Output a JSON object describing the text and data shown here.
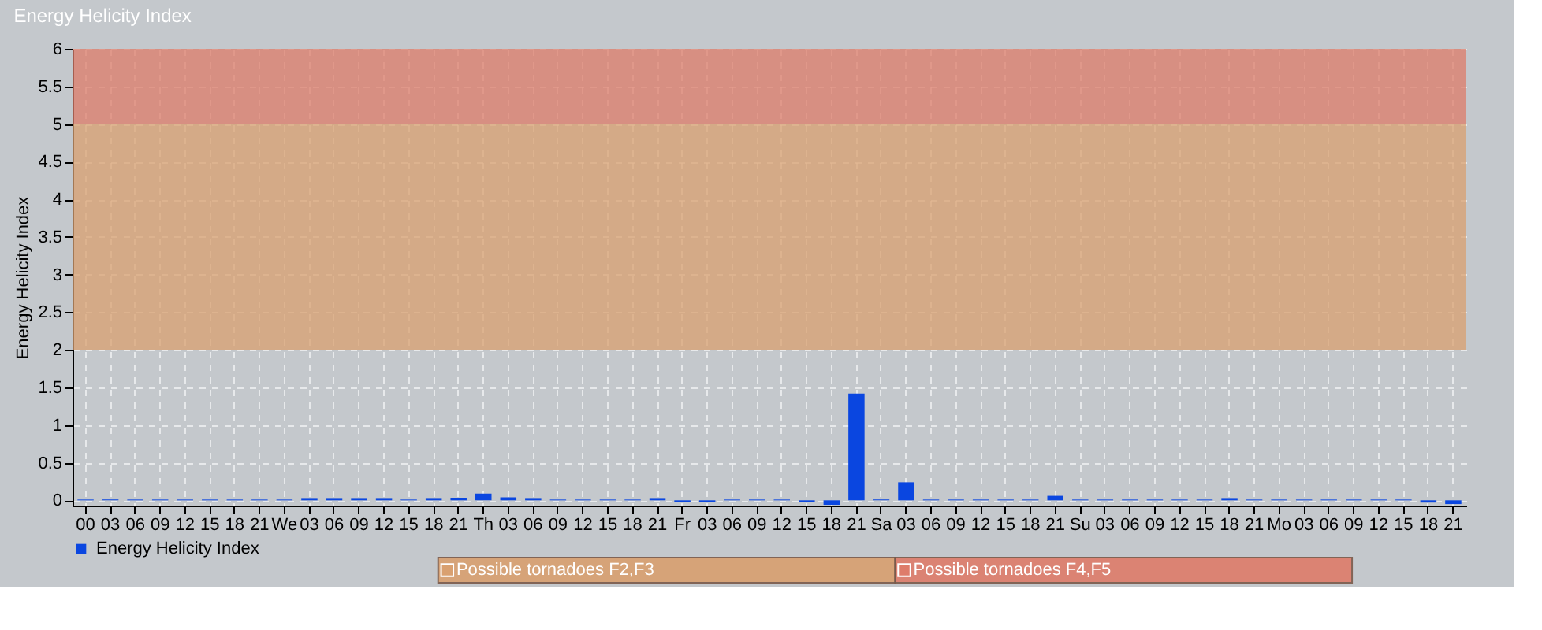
{
  "chart_data": {
    "type": "bar",
    "title": "Energy Helicity Index",
    "ylabel": "Energy Helicity Index",
    "categories": [
      "00",
      "03",
      "06",
      "09",
      "12",
      "15",
      "18",
      "21",
      "We",
      "03",
      "06",
      "09",
      "12",
      "15",
      "18",
      "21",
      "Th",
      "03",
      "06",
      "09",
      "12",
      "15",
      "18",
      "21",
      "Fr",
      "03",
      "06",
      "09",
      "12",
      "15",
      "18",
      "21",
      "Sa",
      "03",
      "06",
      "09",
      "12",
      "15",
      "18",
      "21",
      "Su",
      "03",
      "06",
      "09",
      "12",
      "15",
      "18",
      "21",
      "Mo",
      "03",
      "06",
      "09",
      "12",
      "15",
      "18",
      "21"
    ],
    "series": [
      {
        "name": "Energy Helicity Index",
        "color": "#0a46e0",
        "values": [
          0.01,
          0.01,
          0.01,
          0.01,
          0.01,
          0.01,
          0.01,
          0.01,
          0.01,
          0.02,
          0.02,
          0.02,
          0.02,
          0.01,
          0.02,
          0.03,
          0.09,
          0.04,
          0.02,
          0.01,
          0.01,
          0.01,
          0.01,
          0.02,
          -0.02,
          -0.02,
          0.01,
          0.01,
          0.01,
          -0.02,
          -0.06,
          1.42,
          0.01,
          0.24,
          0.01,
          0.01,
          0.01,
          0.01,
          0.01,
          0.06,
          0.01,
          0.01,
          0.01,
          0.01,
          0.01,
          0.01,
          0.02,
          0.01,
          0.01,
          0.01,
          0.01,
          0.01,
          0.01,
          0.01,
          -0.03,
          -0.05
        ]
      }
    ],
    "ylim": [
      -0.07,
      6
    ],
    "yticks": [
      0,
      0.5,
      1,
      1.5,
      2,
      2.5,
      3,
      3.5,
      4,
      4.5,
      5,
      5.5,
      6
    ],
    "bands": [
      {
        "axis": "y",
        "from": 2,
        "to": 5,
        "label": "Possible tornadoes F2,F3",
        "color": "#d9a070"
      },
      {
        "axis": "y",
        "from": 5,
        "to": 6,
        "label": "Possible tornadoes F4,F5",
        "color": "#de7c6a"
      }
    ],
    "grid": true,
    "legend": "bottom left"
  }
}
